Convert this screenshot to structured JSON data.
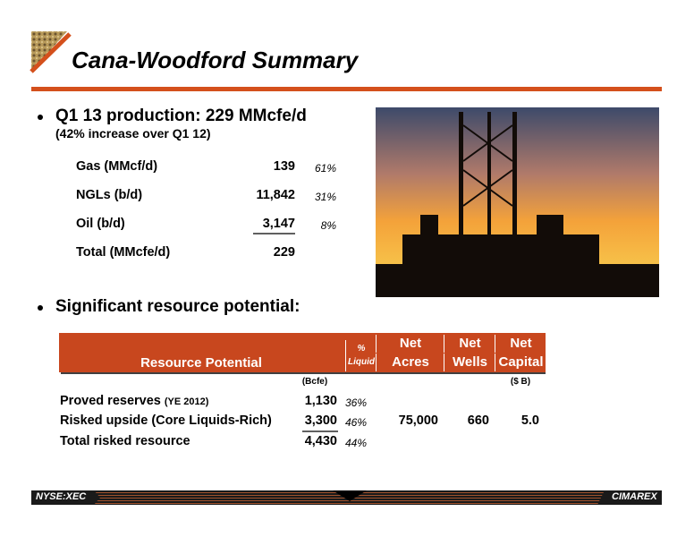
{
  "header": {
    "title": "Cana-Woodford Summary"
  },
  "bullets": [
    {
      "text": "Q1 13 production: 229 MMcfe/d",
      "sub": "(42% increase over Q1 12)"
    },
    {
      "text": "Significant resource potential:"
    }
  ],
  "production_table": {
    "rows": [
      [
        "Gas (MMcf/d)",
        "139",
        "61%"
      ],
      [
        "NGLs (b/d)",
        "11,842",
        "31%"
      ],
      [
        "Oil (b/d)",
        "3,147",
        "8%"
      ],
      [
        "Total (MMcfe/d)",
        "229"
      ]
    ]
  },
  "resource_table": {
    "headers": [
      [
        "Resource Potential"
      ],
      [
        "%",
        "Liquid"
      ],
      [
        "Net",
        "Acres"
      ],
      [
        "Net",
        "Wells"
      ],
      [
        "Net",
        "Capital"
      ]
    ],
    "units": [
      "(Bcfe)",
      "($ B)"
    ],
    "rows": [
      {
        "label": "Proved reserves",
        "note": "(YE 2012)",
        "cells": [
          "1,130",
          "36%"
        ]
      },
      {
        "label": "Risked upside (Core Liquids-Rich)",
        "cells": [
          "3,300",
          "46%",
          "75,000",
          "660",
          "5.0"
        ]
      },
      {
        "label": "Total risked resource",
        "cells": [
          "4,430",
          "44%"
        ]
      }
    ]
  },
  "footer": {
    "ticker": "NYSE:XEC",
    "logo": "CIMAREX"
  }
}
